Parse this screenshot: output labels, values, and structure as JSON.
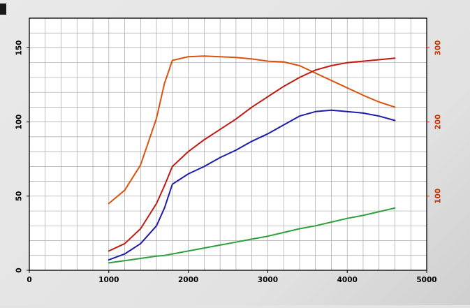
{
  "page": {
    "background": "#e3e3e3",
    "plot_background": "#ffffff",
    "grid_color": "#a6a6a6",
    "border_color": "#000000"
  },
  "chart_data": {
    "type": "line",
    "title": "",
    "xlabel": "",
    "ylabel_left": "",
    "ylabel_right": "",
    "grid": true,
    "legend": "none",
    "x_axis": {
      "min": 0,
      "max": 5000,
      "major_ticks": [
        0,
        1000,
        2000,
        3000,
        4000,
        5000
      ],
      "minor_step": 200,
      "tick_color": "#000000"
    },
    "y_axis_left": {
      "min": 0,
      "max": 170,
      "major_ticks": [
        0,
        50,
        100,
        150
      ],
      "minor_step": 10,
      "tick_color": "#000000"
    },
    "y_axis_right": {
      "min": 0,
      "max": 340,
      "major_ticks": [
        100,
        200,
        300
      ],
      "minor_step": 20,
      "tick_color": "#cc3300"
    },
    "series": [
      {
        "name": "orange-curve-torque",
        "axis": "right",
        "color": "#d9530e",
        "x": [
          1000,
          1200,
          1400,
          1600,
          1700,
          1800,
          2000,
          2200,
          2400,
          2600,
          2800,
          3000,
          3200,
          3400,
          3600,
          3800,
          4000,
          4200,
          4400,
          4600
        ],
        "values": [
          90,
          108,
          142,
          205,
          252,
          283,
          288,
          289,
          288,
          287,
          285,
          282,
          281,
          276,
          266,
          256,
          246,
          236,
          227,
          220
        ]
      },
      {
        "name": "red-curve-power-high",
        "axis": "left",
        "color": "#bf1a10",
        "x": [
          1000,
          1200,
          1400,
          1600,
          1700,
          1800,
          2000,
          2200,
          2400,
          2600,
          2800,
          3000,
          3200,
          3400,
          3600,
          3800,
          4000,
          4200,
          4400,
          4600
        ],
        "values": [
          13,
          18,
          28,
          45,
          57,
          70,
          80,
          88,
          95,
          102,
          110,
          117,
          124,
          130,
          135,
          138,
          140,
          141,
          142,
          143
        ]
      },
      {
        "name": "blue-curve-power-low",
        "axis": "left",
        "color": "#1c1caa",
        "x": [
          1000,
          1200,
          1400,
          1600,
          1700,
          1800,
          2000,
          2200,
          2400,
          2600,
          2800,
          3000,
          3200,
          3400,
          3600,
          3800,
          4000,
          4200,
          4400,
          4600
        ],
        "values": [
          7,
          11,
          18,
          30,
          42,
          58,
          65,
          70,
          76,
          81,
          87,
          92,
          98,
          104,
          107,
          108,
          107,
          106,
          104,
          101
        ]
      },
      {
        "name": "green-curve-baseline",
        "axis": "left",
        "color": "#2f9e3e",
        "x": [
          1000,
          1200,
          1400,
          1600,
          1700,
          1800,
          2000,
          2200,
          2400,
          2600,
          2800,
          3000,
          3200,
          3400,
          3600,
          3800,
          4000,
          4200,
          4400,
          4600
        ],
        "values": [
          5,
          6.5,
          8,
          9.5,
          10,
          11,
          13,
          15,
          17,
          19,
          21,
          23,
          25.5,
          28,
          30,
          32.5,
          35,
          37,
          39.5,
          42
        ]
      }
    ]
  }
}
